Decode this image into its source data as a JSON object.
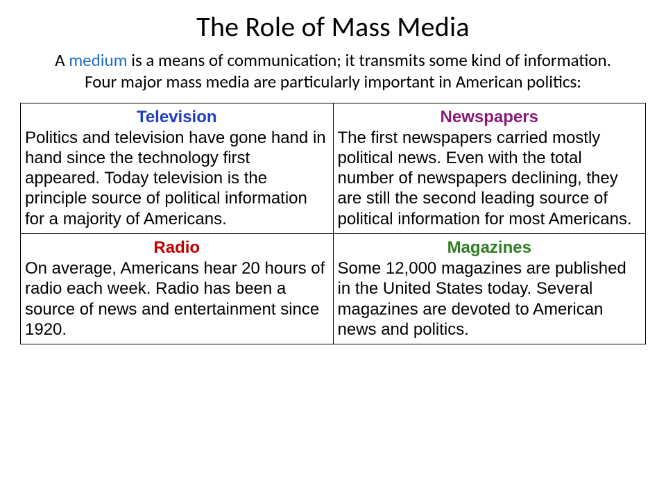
{
  "slide": {
    "title": "The Role of Mass Media",
    "intro_pre": "A ",
    "intro_keyword": "medium",
    "intro_post": " is a means of communication; it transmits some kind of information. Four major mass media are particularly important in American politics:",
    "keyword_color": "#1f6fc2"
  },
  "table": {
    "border_color": "#000000",
    "cells": [
      {
        "heading": "Television",
        "heading_color": "#1f3fbf",
        "body": "Politics and television have gone hand in hand since the technology first appeared. Today television is the principle source of political information for a majority of Americans."
      },
      {
        "heading": "Newspapers",
        "heading_color": "#8a1a7a",
        "body": "The first newspapers carried mostly political news. Even with the total number of newspapers declining, they are still the second leading source of political information for most Americans."
      },
      {
        "heading": "Radio",
        "heading_color": "#c00000",
        "body": "On average, Americans hear 20 hours of radio each week. Radio has been a source of news and entertainment since 1920."
      },
      {
        "heading": "Magazines",
        "heading_color": "#2e7d1f",
        "body": "Some 12,000 magazines are published in the United States today. Several magazines are devoted to American news and politics."
      }
    ]
  }
}
